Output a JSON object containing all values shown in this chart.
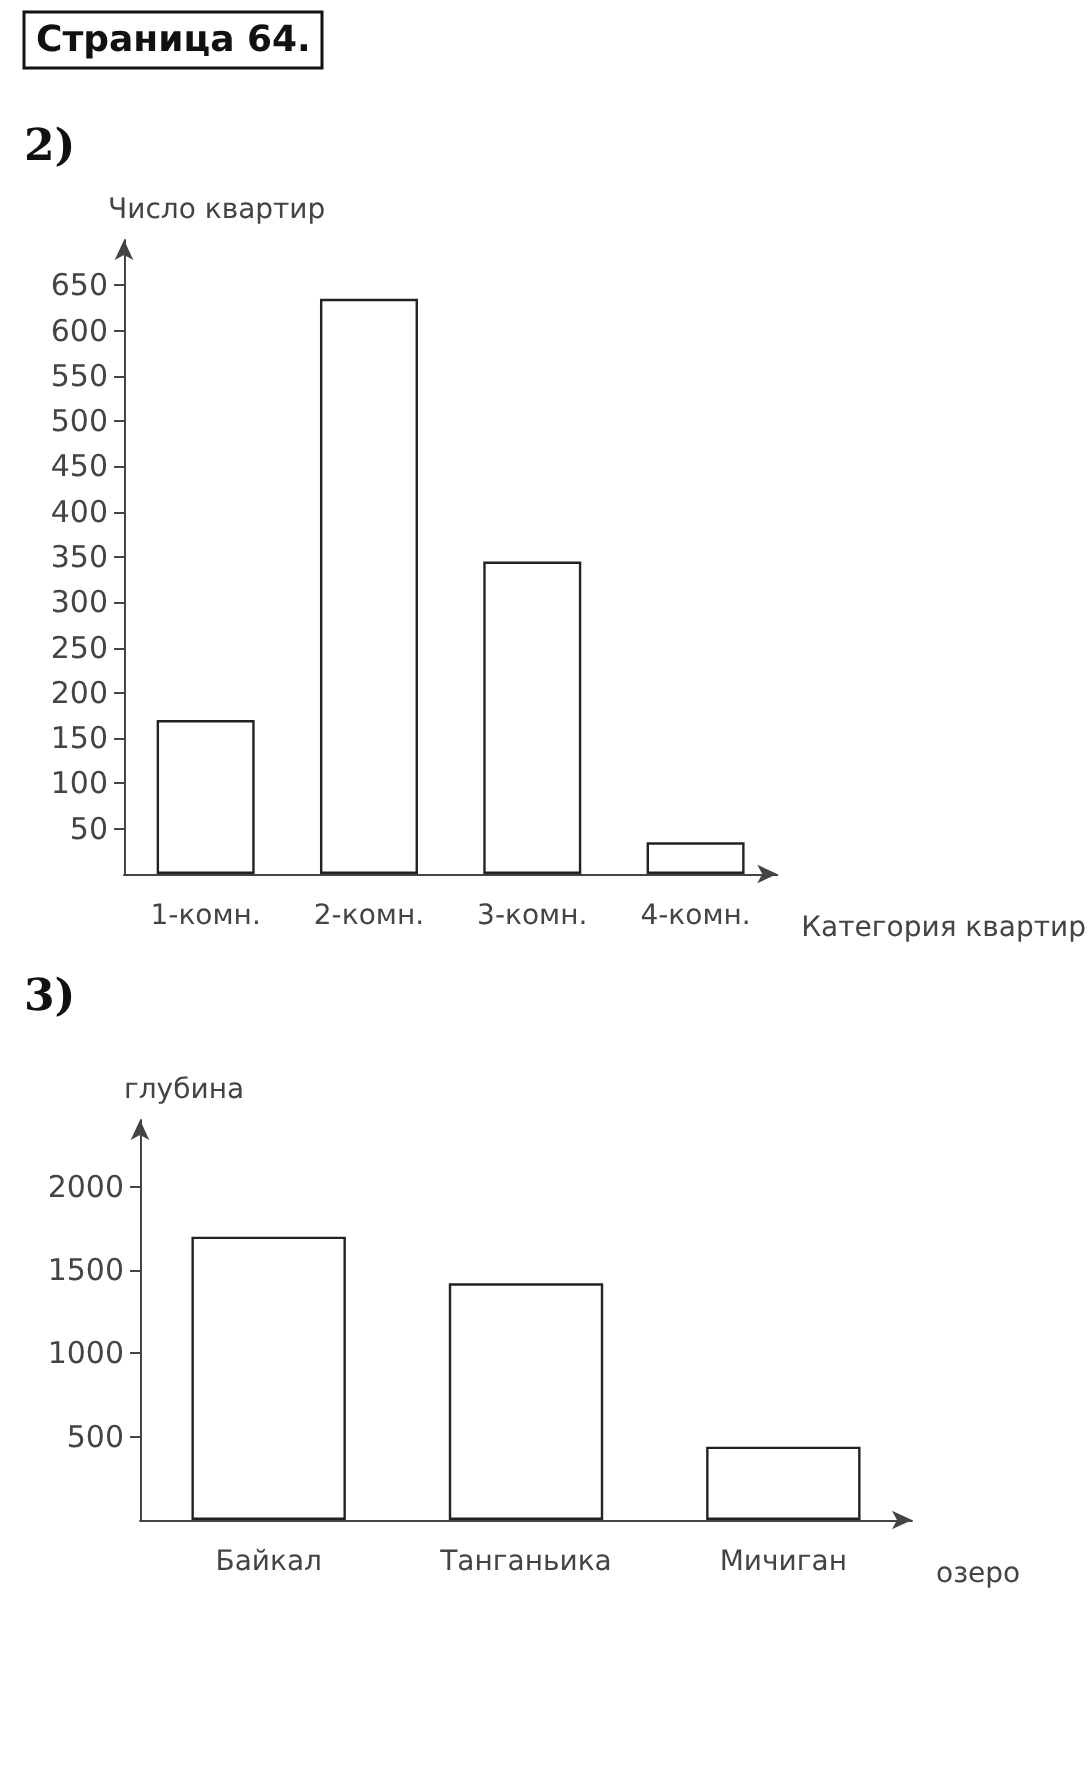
{
  "chart_data": [
    {
      "type": "bar",
      "title": "Страница 64.",
      "annotations": [
        "2)"
      ],
      "ylabel": "Число квартир",
      "xlabel": "Категория квартир",
      "categories": [
        "1-комн.",
        "2-комн.",
        "3-комн.",
        "4-комн."
      ],
      "values": [
        170,
        635,
        345,
        35
      ],
      "color": "#ffffff",
      "ylim": [
        0,
        700
      ],
      "yticks": [
        50,
        100,
        150,
        200,
        250,
        300,
        350,
        400,
        450,
        500,
        550,
        600,
        650
      ],
      "grid": false
    },
    {
      "type": "bar",
      "annotations": [
        "3)"
      ],
      "ylabel": "глубина",
      "xlabel": "озеро",
      "categories": [
        "Байкал",
        "Танганьика",
        "Мичиган"
      ],
      "values": [
        1700,
        1420,
        440
      ],
      "color": "#ffffff",
      "ylim": [
        0,
        2400
      ],
      "yticks": [
        500,
        1000,
        1500,
        2000
      ],
      "grid": false
    }
  ]
}
